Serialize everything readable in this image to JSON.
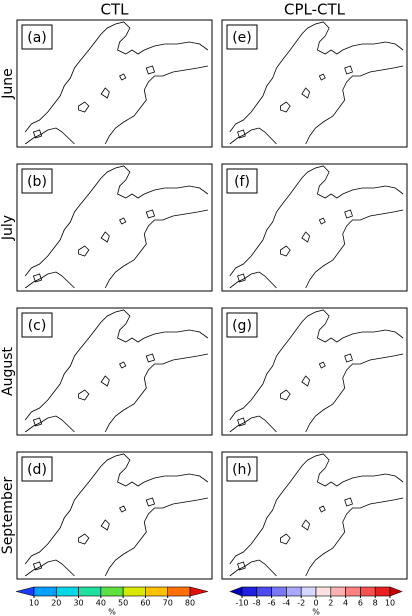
{
  "columns": [
    "CTL",
    "CPL-CTL"
  ],
  "rows": [
    "June",
    "July",
    "August",
    "September"
  ],
  "panels": [
    [
      "(a)",
      "(e)"
    ],
    [
      "(b)",
      "(f)"
    ],
    [
      "(c)",
      "(g)"
    ],
    [
      "(d)",
      "(h)"
    ]
  ],
  "colorbars": [
    {
      "ticks": [
        10,
        20,
        30,
        40,
        50,
        60,
        70,
        80
      ],
      "unit": "%",
      "colors": [
        "#1a3cff",
        "#00a0ff",
        "#00d8e8",
        "#20e0a0",
        "#60e040",
        "#d8e800",
        "#ffc000",
        "#ff7000",
        "#e01010"
      ]
    },
    {
      "ticks": [
        -10,
        -8,
        -6,
        -4,
        -2,
        0,
        2,
        4,
        6,
        8,
        10
      ],
      "unit": "%",
      "colors": [
        "#0000c8",
        "#2020e0",
        "#4a4af0",
        "#7878f8",
        "#a8a8fc",
        "#d8d8ff",
        "#ffe0e0",
        "#ffb0b0",
        "#ff8080",
        "#f85050",
        "#e82020",
        "#c80000"
      ]
    }
  ]
}
